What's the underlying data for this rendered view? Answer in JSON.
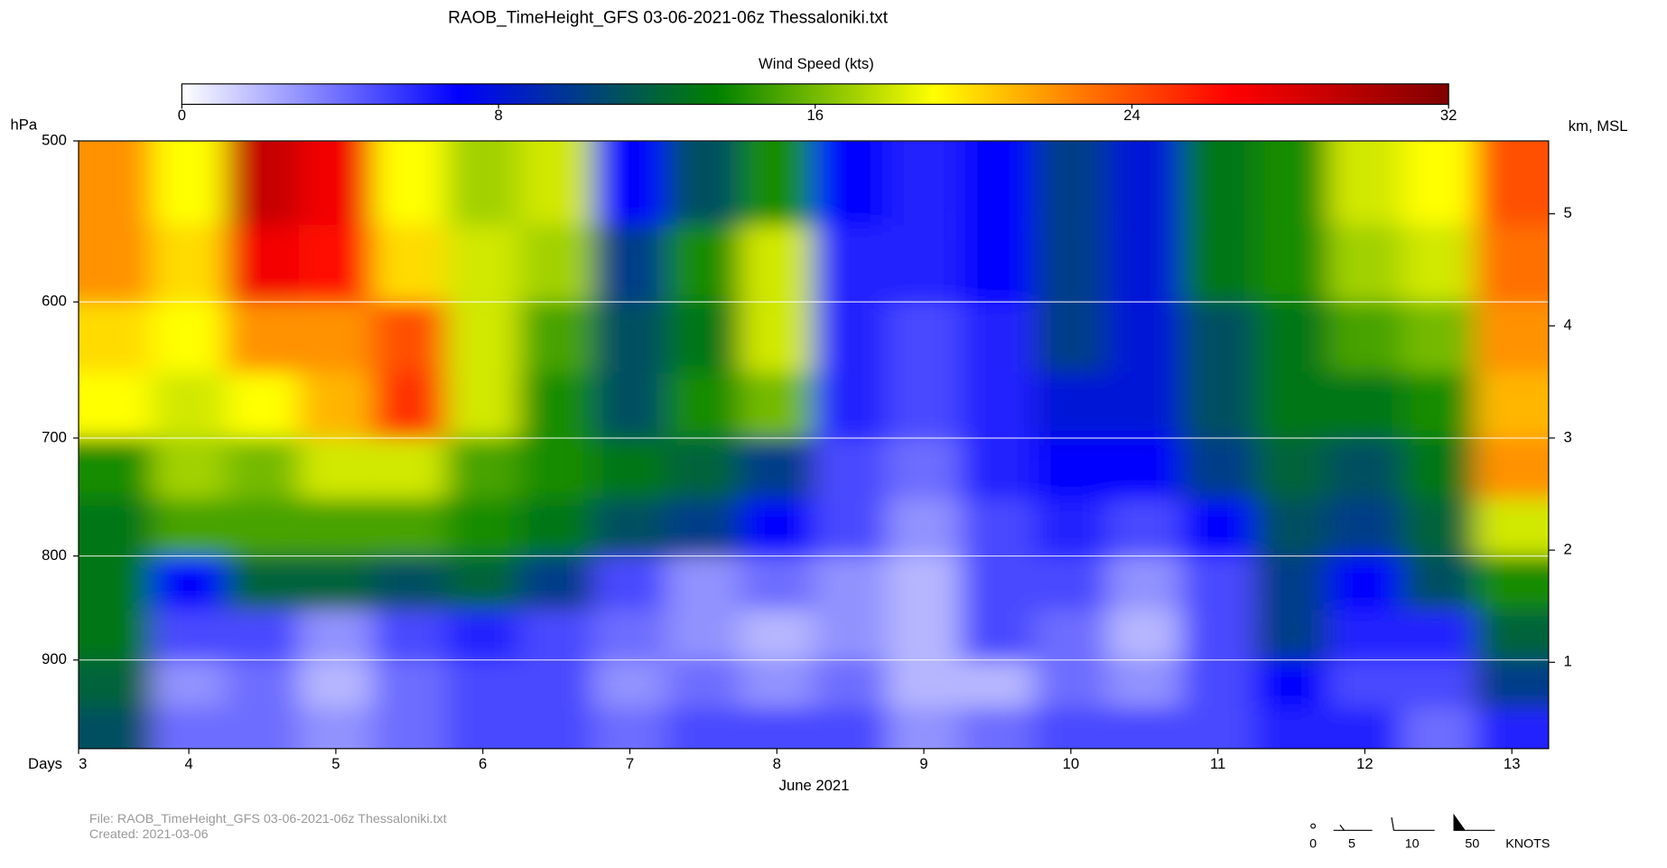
{
  "chart_data": {
    "type": "heatmap",
    "title": "RAOB_TimeHeight_GFS 03-06-2021-06z Thessaloniki.txt",
    "colorbar": {
      "title": "Wind Speed (kts)",
      "lim": [
        0,
        32
      ],
      "ticks": [
        0,
        8,
        16,
        24,
        32
      ],
      "stops": [
        {
          "value": 0,
          "color": "#ffffff"
        },
        {
          "value": 7,
          "color": "#0000ff"
        },
        {
          "value": 11,
          "color": "#005060"
        },
        {
          "value": 13.5,
          "color": "#008000"
        },
        {
          "value": 19,
          "color": "#ffff00"
        },
        {
          "value": 22.5,
          "color": "#ff8000"
        },
        {
          "value": 26.5,
          "color": "#ff0000"
        },
        {
          "value": 32,
          "color": "#800000"
        }
      ]
    },
    "x_label": "Days",
    "x_title": "June 2021",
    "xlim": [
      3.25,
      13.25
    ],
    "xticks": [
      {
        "value": 3.25,
        "label": "3"
      },
      4,
      5,
      6,
      7,
      8,
      9,
      10,
      11,
      12,
      13
    ],
    "y_label": "hPa",
    "y_log": true,
    "ylim": [
      995,
      500
    ],
    "yticks": [
      500,
      600,
      700,
      800,
      900
    ],
    "y2_label": "km, MSL",
    "y2lim": [
      0.23,
      5.65
    ],
    "y2ticks": [
      1,
      2,
      3,
      4,
      5
    ],
    "grid": true,
    "x": [
      3.5,
      4,
      4.5,
      5,
      5.5,
      6,
      6.5,
      7,
      7.5,
      8,
      8.5,
      9,
      9.5,
      10,
      10.5,
      11,
      11.5,
      12,
      12.5,
      13
    ],
    "y": [
      525,
      575,
      625,
      675,
      725,
      775,
      825,
      875,
      925,
      975
    ],
    "values": [
      [
        22,
        19,
        29,
        27,
        19,
        17,
        18,
        7,
        11,
        14,
        7,
        6,
        7,
        10,
        8,
        13,
        14,
        18,
        19,
        24
      ],
      [
        22,
        20,
        27,
        26,
        20,
        18,
        17,
        10,
        14,
        18,
        6,
        6,
        7,
        10,
        8,
        13,
        14,
        17,
        18,
        23
      ],
      [
        20,
        19,
        22,
        22,
        24,
        18,
        15,
        11,
        13,
        18,
        6,
        5,
        6,
        10,
        8,
        11,
        13,
        15,
        16,
        22
      ],
      [
        19,
        18,
        19,
        21,
        25,
        18,
        14,
        11,
        14,
        16,
        6,
        5,
        6,
        8,
        8,
        11,
        13,
        13,
        14,
        21
      ],
      [
        14,
        17,
        16,
        18,
        18,
        15,
        14,
        13,
        12,
        10,
        5,
        4,
        6,
        7,
        7,
        10,
        12,
        11,
        13,
        22
      ],
      [
        13,
        15,
        15,
        15,
        15,
        14,
        13,
        11,
        10,
        7,
        5,
        3,
        5,
        6,
        5,
        7,
        11,
        10,
        12,
        18
      ],
      [
        13,
        7,
        12,
        12,
        11,
        12,
        10,
        5,
        3,
        4,
        3,
        2,
        5,
        5,
        3,
        5,
        10,
        7,
        11,
        14
      ],
      [
        13,
        5,
        5,
        3,
        5,
        6,
        5,
        4,
        3,
        2,
        3,
        2,
        5,
        4,
        2,
        5,
        10,
        6,
        6,
        12
      ],
      [
        12,
        3,
        4,
        2,
        4,
        5,
        5,
        3,
        4,
        3,
        4,
        2,
        2,
        4,
        3,
        5,
        7,
        5,
        5,
        10
      ],
      [
        11,
        4,
        4,
        3,
        4,
        5,
        5,
        4,
        5,
        5,
        5,
        3,
        4,
        5,
        5,
        5,
        6,
        6,
        4,
        6
      ]
    ]
  },
  "footer": {
    "file": "File: RAOB_TimeHeight_GFS 03-06-2021-06z Thessaloniki.txt",
    "created": "Created:  2021-03-06"
  },
  "barb_legend": {
    "values": [
      0,
      5,
      10,
      50
    ],
    "unit": "KNOTS"
  }
}
